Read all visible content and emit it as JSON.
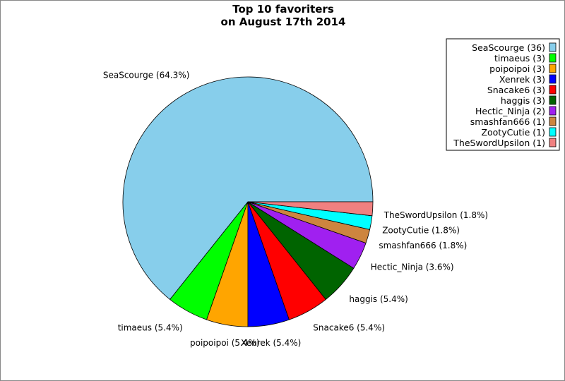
{
  "chart_data": {
    "type": "pie",
    "title": [
      "Top 10 favoriters",
      "on August 17th 2014"
    ],
    "slices": [
      {
        "name": "SeaScourge",
        "value": 36,
        "label": "SeaScourge (64.3%)",
        "legend": "SeaScourge (36)",
        "color": "#87ceeb"
      },
      {
        "name": "timaeus",
        "value": 3,
        "label": "timaeus (5.4%)",
        "legend": "timaeus (3)",
        "color": "#00ff00"
      },
      {
        "name": "poipoipoi",
        "value": 3,
        "label": "poipoipoi (5.4%)",
        "legend": "poipoipoi (3)",
        "color": "#ffa500"
      },
      {
        "name": "Xenrek",
        "value": 3,
        "label": "Xenrek (5.4%)",
        "legend": "Xenrek (3)",
        "color": "#0000ff"
      },
      {
        "name": "Snacake6",
        "value": 3,
        "label": "Snacake6 (5.4%)",
        "legend": "Snacake6 (3)",
        "color": "#ff0000"
      },
      {
        "name": "haggis",
        "value": 3,
        "label": "haggis (5.4%)",
        "legend": "haggis (3)",
        "color": "#006400"
      },
      {
        "name": "Hectic_Ninja",
        "value": 2,
        "label": "Hectic_Ninja (3.6%)",
        "legend": "Hectic_Ninja (2)",
        "color": "#a020f0"
      },
      {
        "name": "smashfan666",
        "value": 1,
        "label": "smashfan666 (1.8%)",
        "legend": "smashfan666 (1)",
        "color": "#cd853f"
      },
      {
        "name": "ZootyCutie",
        "value": 1,
        "label": "ZootyCutie (1.8%)",
        "legend": "ZootyCutie (1)",
        "color": "#00ffff"
      },
      {
        "name": "TheSwordUpsilon",
        "value": 1,
        "label": "TheSwordUpsilon (1.8%)",
        "legend": "TheSwordUpsilon (1)",
        "color": "#f08080"
      }
    ],
    "legend_position": "top-right"
  }
}
